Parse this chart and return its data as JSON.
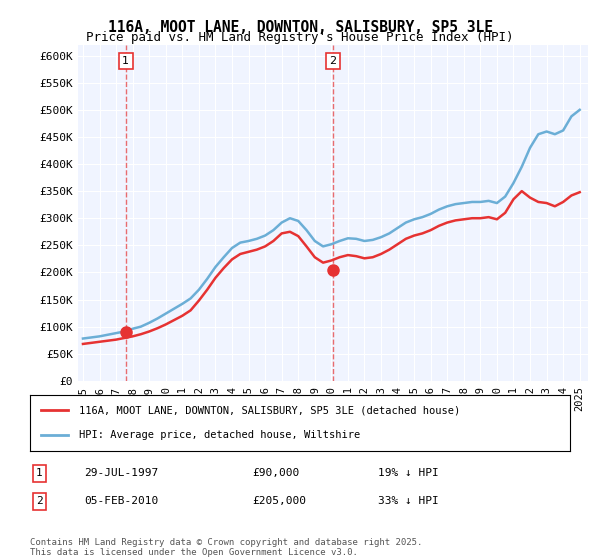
{
  "title_line1": "116A, MOOT LANE, DOWNTON, SALISBURY, SP5 3LE",
  "title_line2": "Price paid vs. HM Land Registry's House Price Index (HPI)",
  "background_color": "#f0f4ff",
  "plot_bg_color": "#f0f4ff",
  "ylabel": "",
  "xlabel": "",
  "ylim": [
    0,
    620000
  ],
  "yticks": [
    0,
    50000,
    100000,
    150000,
    200000,
    250000,
    300000,
    350000,
    400000,
    450000,
    500000,
    550000,
    600000
  ],
  "ytick_labels": [
    "£0",
    "£50K",
    "£100K",
    "£150K",
    "£200K",
    "£250K",
    "£300K",
    "£350K",
    "£400K",
    "£450K",
    "£500K",
    "£550K",
    "£600K"
  ],
  "purchase_dates": [
    "1997-07-29",
    "2010-02-05"
  ],
  "purchase_prices": [
    90000,
    205000
  ],
  "purchase_labels": [
    "1",
    "2"
  ],
  "purchase_label1": "29-JUL-1997",
  "purchase_price1": "£90,000",
  "purchase_pct1": "19% ↓ HPI",
  "purchase_label2": "05-FEB-2010",
  "purchase_price2": "£205,000",
  "purchase_pct2": "33% ↓ HPI",
  "legend_label1": "116A, MOOT LANE, DOWNTON, SALISBURY, SP5 3LE (detached house)",
  "legend_label2": "HPI: Average price, detached house, Wiltshire",
  "footer": "Contains HM Land Registry data © Crown copyright and database right 2025.\nThis data is licensed under the Open Government Licence v3.0.",
  "hpi_color": "#6baed6",
  "price_color": "#e63232",
  "hpi_x": [
    1995.0,
    1995.5,
    1996.0,
    1996.5,
    1997.0,
    1997.5,
    1998.0,
    1998.5,
    1999.0,
    1999.5,
    2000.0,
    2000.5,
    2001.0,
    2001.5,
    2002.0,
    2002.5,
    2003.0,
    2003.5,
    2004.0,
    2004.5,
    2005.0,
    2005.5,
    2006.0,
    2006.5,
    2007.0,
    2007.5,
    2008.0,
    2008.5,
    2009.0,
    2009.5,
    2010.0,
    2010.5,
    2011.0,
    2011.5,
    2012.0,
    2012.5,
    2013.0,
    2013.5,
    2014.0,
    2014.5,
    2015.0,
    2015.5,
    2016.0,
    2016.5,
    2017.0,
    2017.5,
    2018.0,
    2018.5,
    2019.0,
    2019.5,
    2020.0,
    2020.5,
    2021.0,
    2021.5,
    2022.0,
    2022.5,
    2023.0,
    2023.5,
    2024.0,
    2024.5,
    2025.0
  ],
  "hpi_y": [
    78000,
    80000,
    82000,
    85000,
    88000,
    91000,
    96000,
    100000,
    107000,
    115000,
    124000,
    133000,
    142000,
    152000,
    168000,
    188000,
    210000,
    228000,
    245000,
    255000,
    258000,
    262000,
    268000,
    278000,
    292000,
    300000,
    295000,
    278000,
    258000,
    248000,
    252000,
    258000,
    263000,
    262000,
    258000,
    260000,
    265000,
    272000,
    282000,
    292000,
    298000,
    302000,
    308000,
    316000,
    322000,
    326000,
    328000,
    330000,
    330000,
    332000,
    328000,
    340000,
    365000,
    395000,
    430000,
    455000,
    460000,
    455000,
    462000,
    488000,
    500000
  ],
  "price_x": [
    1995.0,
    1995.5,
    1996.0,
    1996.5,
    1997.0,
    1997.5,
    1998.0,
    1998.5,
    1999.0,
    1999.5,
    2000.0,
    2000.5,
    2001.0,
    2001.5,
    2002.0,
    2002.5,
    2003.0,
    2003.5,
    2004.0,
    2004.5,
    2005.0,
    2005.5,
    2006.0,
    2006.5,
    2007.0,
    2007.5,
    2008.0,
    2008.5,
    2009.0,
    2009.5,
    2010.0,
    2010.5,
    2011.0,
    2011.5,
    2012.0,
    2012.5,
    2013.0,
    2013.5,
    2014.0,
    2014.5,
    2015.0,
    2015.5,
    2016.0,
    2016.5,
    2017.0,
    2017.5,
    2018.0,
    2018.5,
    2019.0,
    2019.5,
    2020.0,
    2020.5,
    2021.0,
    2021.5,
    2022.0,
    2022.5,
    2023.0,
    2023.5,
    2024.0,
    2024.5,
    2025.0
  ],
  "price_y": [
    68000,
    70000,
    72000,
    74000,
    76000,
    79000,
    82000,
    86000,
    91000,
    97000,
    104000,
    112000,
    120000,
    130000,
    148000,
    168000,
    190000,
    208000,
    224000,
    234000,
    238000,
    242000,
    248000,
    258000,
    272000,
    275000,
    267000,
    248000,
    228000,
    218000,
    222000,
    228000,
    232000,
    230000,
    226000,
    228000,
    234000,
    242000,
    252000,
    262000,
    268000,
    272000,
    278000,
    286000,
    292000,
    296000,
    298000,
    300000,
    300000,
    302000,
    298000,
    310000,
    335000,
    350000,
    338000,
    330000,
    328000,
    322000,
    330000,
    342000,
    348000
  ],
  "xticks": [
    1995,
    1996,
    1997,
    1998,
    1999,
    2000,
    2001,
    2002,
    2003,
    2004,
    2005,
    2006,
    2007,
    2008,
    2009,
    2010,
    2011,
    2012,
    2013,
    2014,
    2015,
    2016,
    2017,
    2018,
    2019,
    2020,
    2021,
    2022,
    2023,
    2024,
    2025
  ],
  "xlim": [
    1994.7,
    2025.5
  ]
}
